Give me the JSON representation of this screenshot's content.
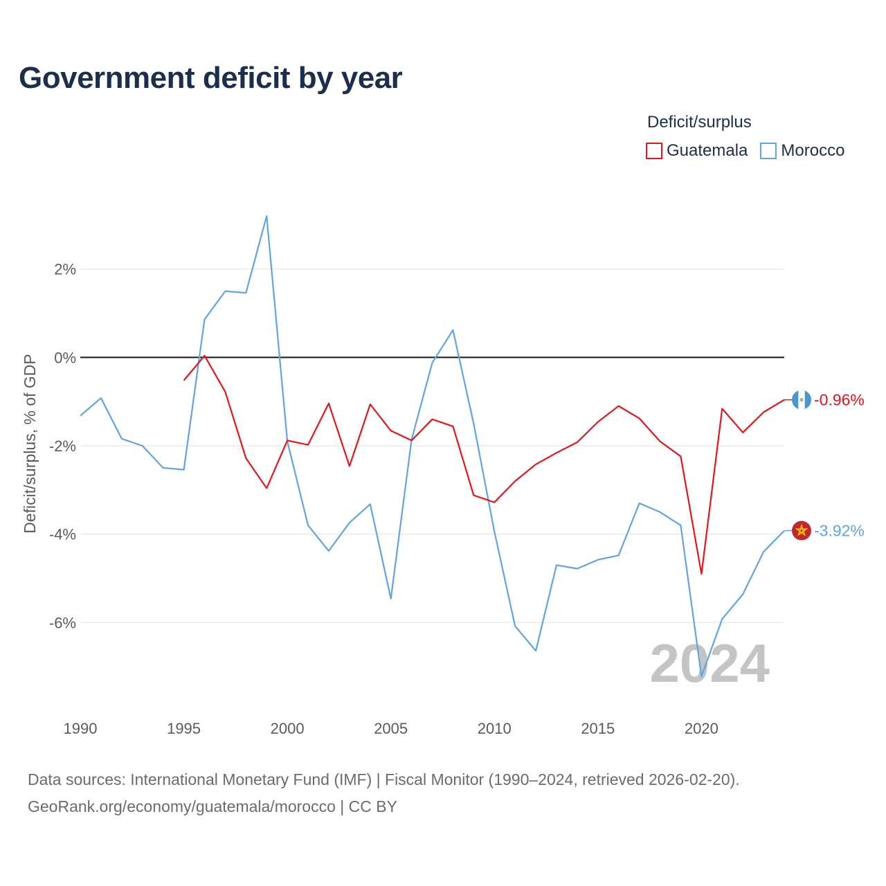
{
  "title": "Government deficit by year",
  "legend": {
    "title": "Deficit/surplus",
    "items": [
      {
        "label": "Guatemala",
        "color": "#e8141c"
      },
      {
        "label": "Morocco",
        "color": "#5ea4e6"
      }
    ]
  },
  "footer": {
    "line1": "Data sources: International Monetary Fund (IMF) | Fiscal Monitor (1990–2024, retrieved 2026-02-20).",
    "line2": "GeoRank.org/economy/guatemala/morocco | CC BY"
  },
  "chart_data": {
    "type": "line",
    "title": "Government deficit by year",
    "xlabel": "",
    "ylabel": "Deficit/surplus, % of GDP",
    "xlim": [
      1990,
      2024
    ],
    "ylim": [
      -8.0,
      4.0
    ],
    "x_ticks": [
      "1990",
      "1995",
      "2000",
      "2005",
      "2010",
      "2015",
      "2020"
    ],
    "y_ticks": [
      {
        "value": 2,
        "label": "2%"
      },
      {
        "value": 0,
        "label": "0%"
      },
      {
        "value": -2,
        "label": "-2%"
      },
      {
        "value": -4,
        "label": "-4%"
      },
      {
        "value": -6,
        "label": "-6%"
      }
    ],
    "watermark": "2024",
    "series": [
      {
        "name": "Guatemala",
        "color": "#e8141c",
        "end_label": "-0.96%",
        "x": [
          1995,
          1996,
          1997,
          1998,
          1999,
          2000,
          2001,
          2002,
          2003,
          2004,
          2005,
          2006,
          2007,
          2008,
          2009,
          2010,
          2011,
          2012,
          2013,
          2014,
          2015,
          2016,
          2017,
          2018,
          2019,
          2020,
          2021,
          2022,
          2023,
          2024
        ],
        "values": [
          -0.52,
          0.04,
          -0.78,
          -2.28,
          -2.96,
          -1.88,
          -1.98,
          -1.04,
          -2.46,
          -1.06,
          -1.66,
          -1.88,
          -1.4,
          -1.56,
          -3.12,
          -3.28,
          -2.8,
          -2.42,
          -2.16,
          -1.92,
          -1.46,
          -1.1,
          -1.38,
          -1.9,
          -2.24,
          -4.9,
          -1.16,
          -1.7,
          -1.24,
          -0.96
        ]
      },
      {
        "name": "Morocco",
        "color": "#5ea4e6",
        "end_label": "-3.92%",
        "x": [
          1990,
          1991,
          1992,
          1993,
          1994,
          1995,
          1996,
          1997,
          1998,
          1999,
          2000,
          2001,
          2002,
          2003,
          2004,
          2005,
          2006,
          2007,
          2008,
          2009,
          2010,
          2011,
          2012,
          2013,
          2014,
          2015,
          2016,
          2017,
          2018,
          2019,
          2020,
          2021,
          2022,
          2023,
          2024
        ],
        "values": [
          -1.32,
          -0.92,
          -1.84,
          -2.0,
          -2.5,
          -2.54,
          0.86,
          1.5,
          1.46,
          3.2,
          -1.9,
          -3.8,
          -4.38,
          -3.74,
          -3.32,
          -5.46,
          -1.86,
          -0.12,
          0.62,
          -1.5,
          -3.94,
          -6.08,
          -6.64,
          -4.7,
          -4.78,
          -4.58,
          -4.48,
          -3.3,
          -3.5,
          -3.8,
          -7.22,
          -5.92,
          -5.36,
          -4.4,
          -3.92
        ]
      }
    ]
  }
}
